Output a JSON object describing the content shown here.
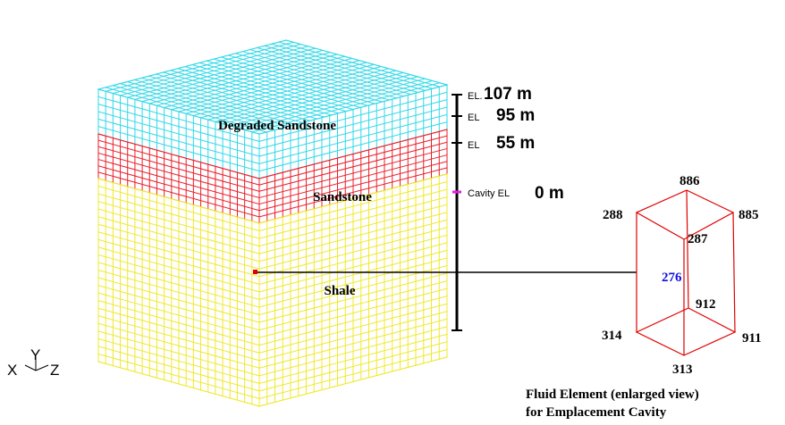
{
  "layers": [
    "Degraded Sandstone",
    "Sandstone",
    "Shale"
  ],
  "elevations": [
    {
      "prefix": "EL.",
      "value": "107 m"
    },
    {
      "prefix": "EL",
      "value": "95 m"
    },
    {
      "prefix": "EL",
      "value": "55 m"
    },
    {
      "prefix": "Cavity EL",
      "value": "0 m"
    }
  ],
  "nodes": [
    "886",
    "885",
    "288",
    "287",
    "276",
    "912",
    "314",
    "911",
    "313"
  ],
  "caption": [
    "Fluid Element (enlarged view)",
    "for Emplacement Cavity"
  ],
  "axes": [
    "X",
    "Y",
    "Z"
  ]
}
